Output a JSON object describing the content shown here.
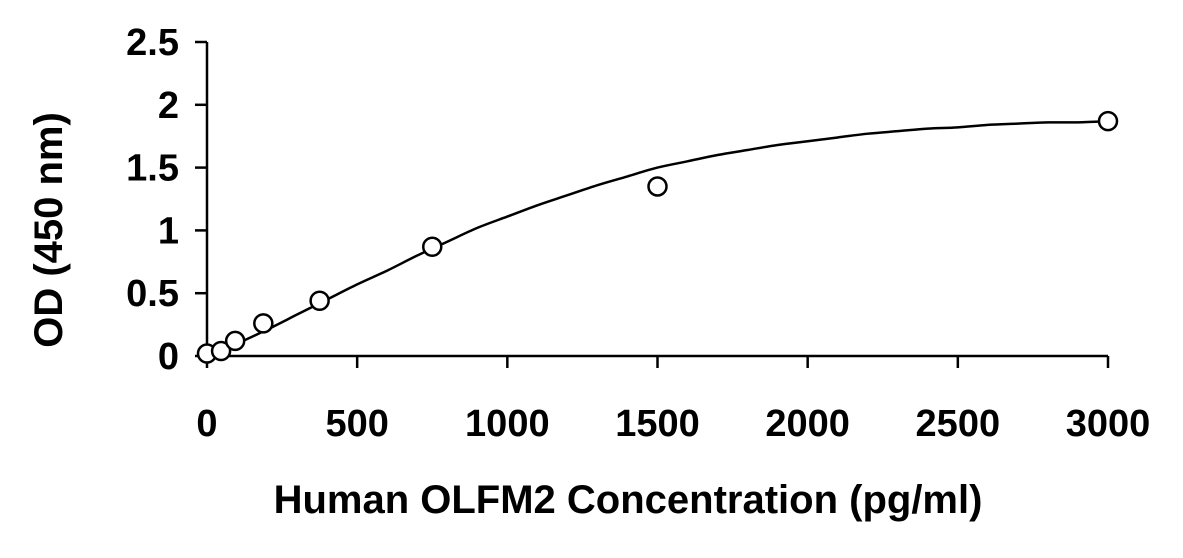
{
  "chart_data": {
    "type": "scatter",
    "title": "",
    "xlabel": "Human OLFM2 Concentration (pg/ml)",
    "ylabel": "OD (450 nm)",
    "xlim": [
      0,
      3000
    ],
    "ylim": [
      0,
      2.5
    ],
    "x_ticks": [
      0,
      500,
      1000,
      1500,
      2000,
      2500,
      3000
    ],
    "x_tick_labels": [
      "0",
      "500",
      "1000",
      "1500",
      "2000",
      "2500",
      "3000"
    ],
    "y_ticks": [
      0,
      0.5,
      1,
      1.5,
      2,
      2.5
    ],
    "y_tick_labels": [
      "0",
      "0.5",
      "1",
      "1.5",
      "2",
      "2.5"
    ],
    "grid": false,
    "legend": "none",
    "series": [
      {
        "marker": "open-circle",
        "x": [
          0,
          46.9,
          93.8,
          187.5,
          375,
          750,
          1500,
          3000
        ],
        "y": [
          0.02,
          0.04,
          0.12,
          0.26,
          0.44,
          0.87,
          1.35,
          1.87
        ]
      }
    ],
    "fit_curve": {
      "x": [
        0,
        100,
        200,
        300,
        400,
        500,
        600,
        700,
        800,
        900,
        1000,
        1100,
        1200,
        1300,
        1400,
        1500,
        1600,
        1700,
        1800,
        1900,
        2000,
        2100,
        2200,
        2300,
        2400,
        2500,
        2600,
        2700,
        2800,
        2900,
        3000
      ],
      "y": [
        0.02,
        0.1,
        0.21,
        0.33,
        0.45,
        0.57,
        0.68,
        0.8,
        0.91,
        1.02,
        1.11,
        1.2,
        1.28,
        1.36,
        1.43,
        1.5,
        1.55,
        1.6,
        1.64,
        1.68,
        1.71,
        1.74,
        1.77,
        1.79,
        1.81,
        1.82,
        1.84,
        1.85,
        1.86,
        1.86,
        1.87
      ]
    },
    "colors": {
      "axis": "#000000",
      "marker": "#000000",
      "curve": "#000000",
      "background": "#ffffff"
    }
  }
}
